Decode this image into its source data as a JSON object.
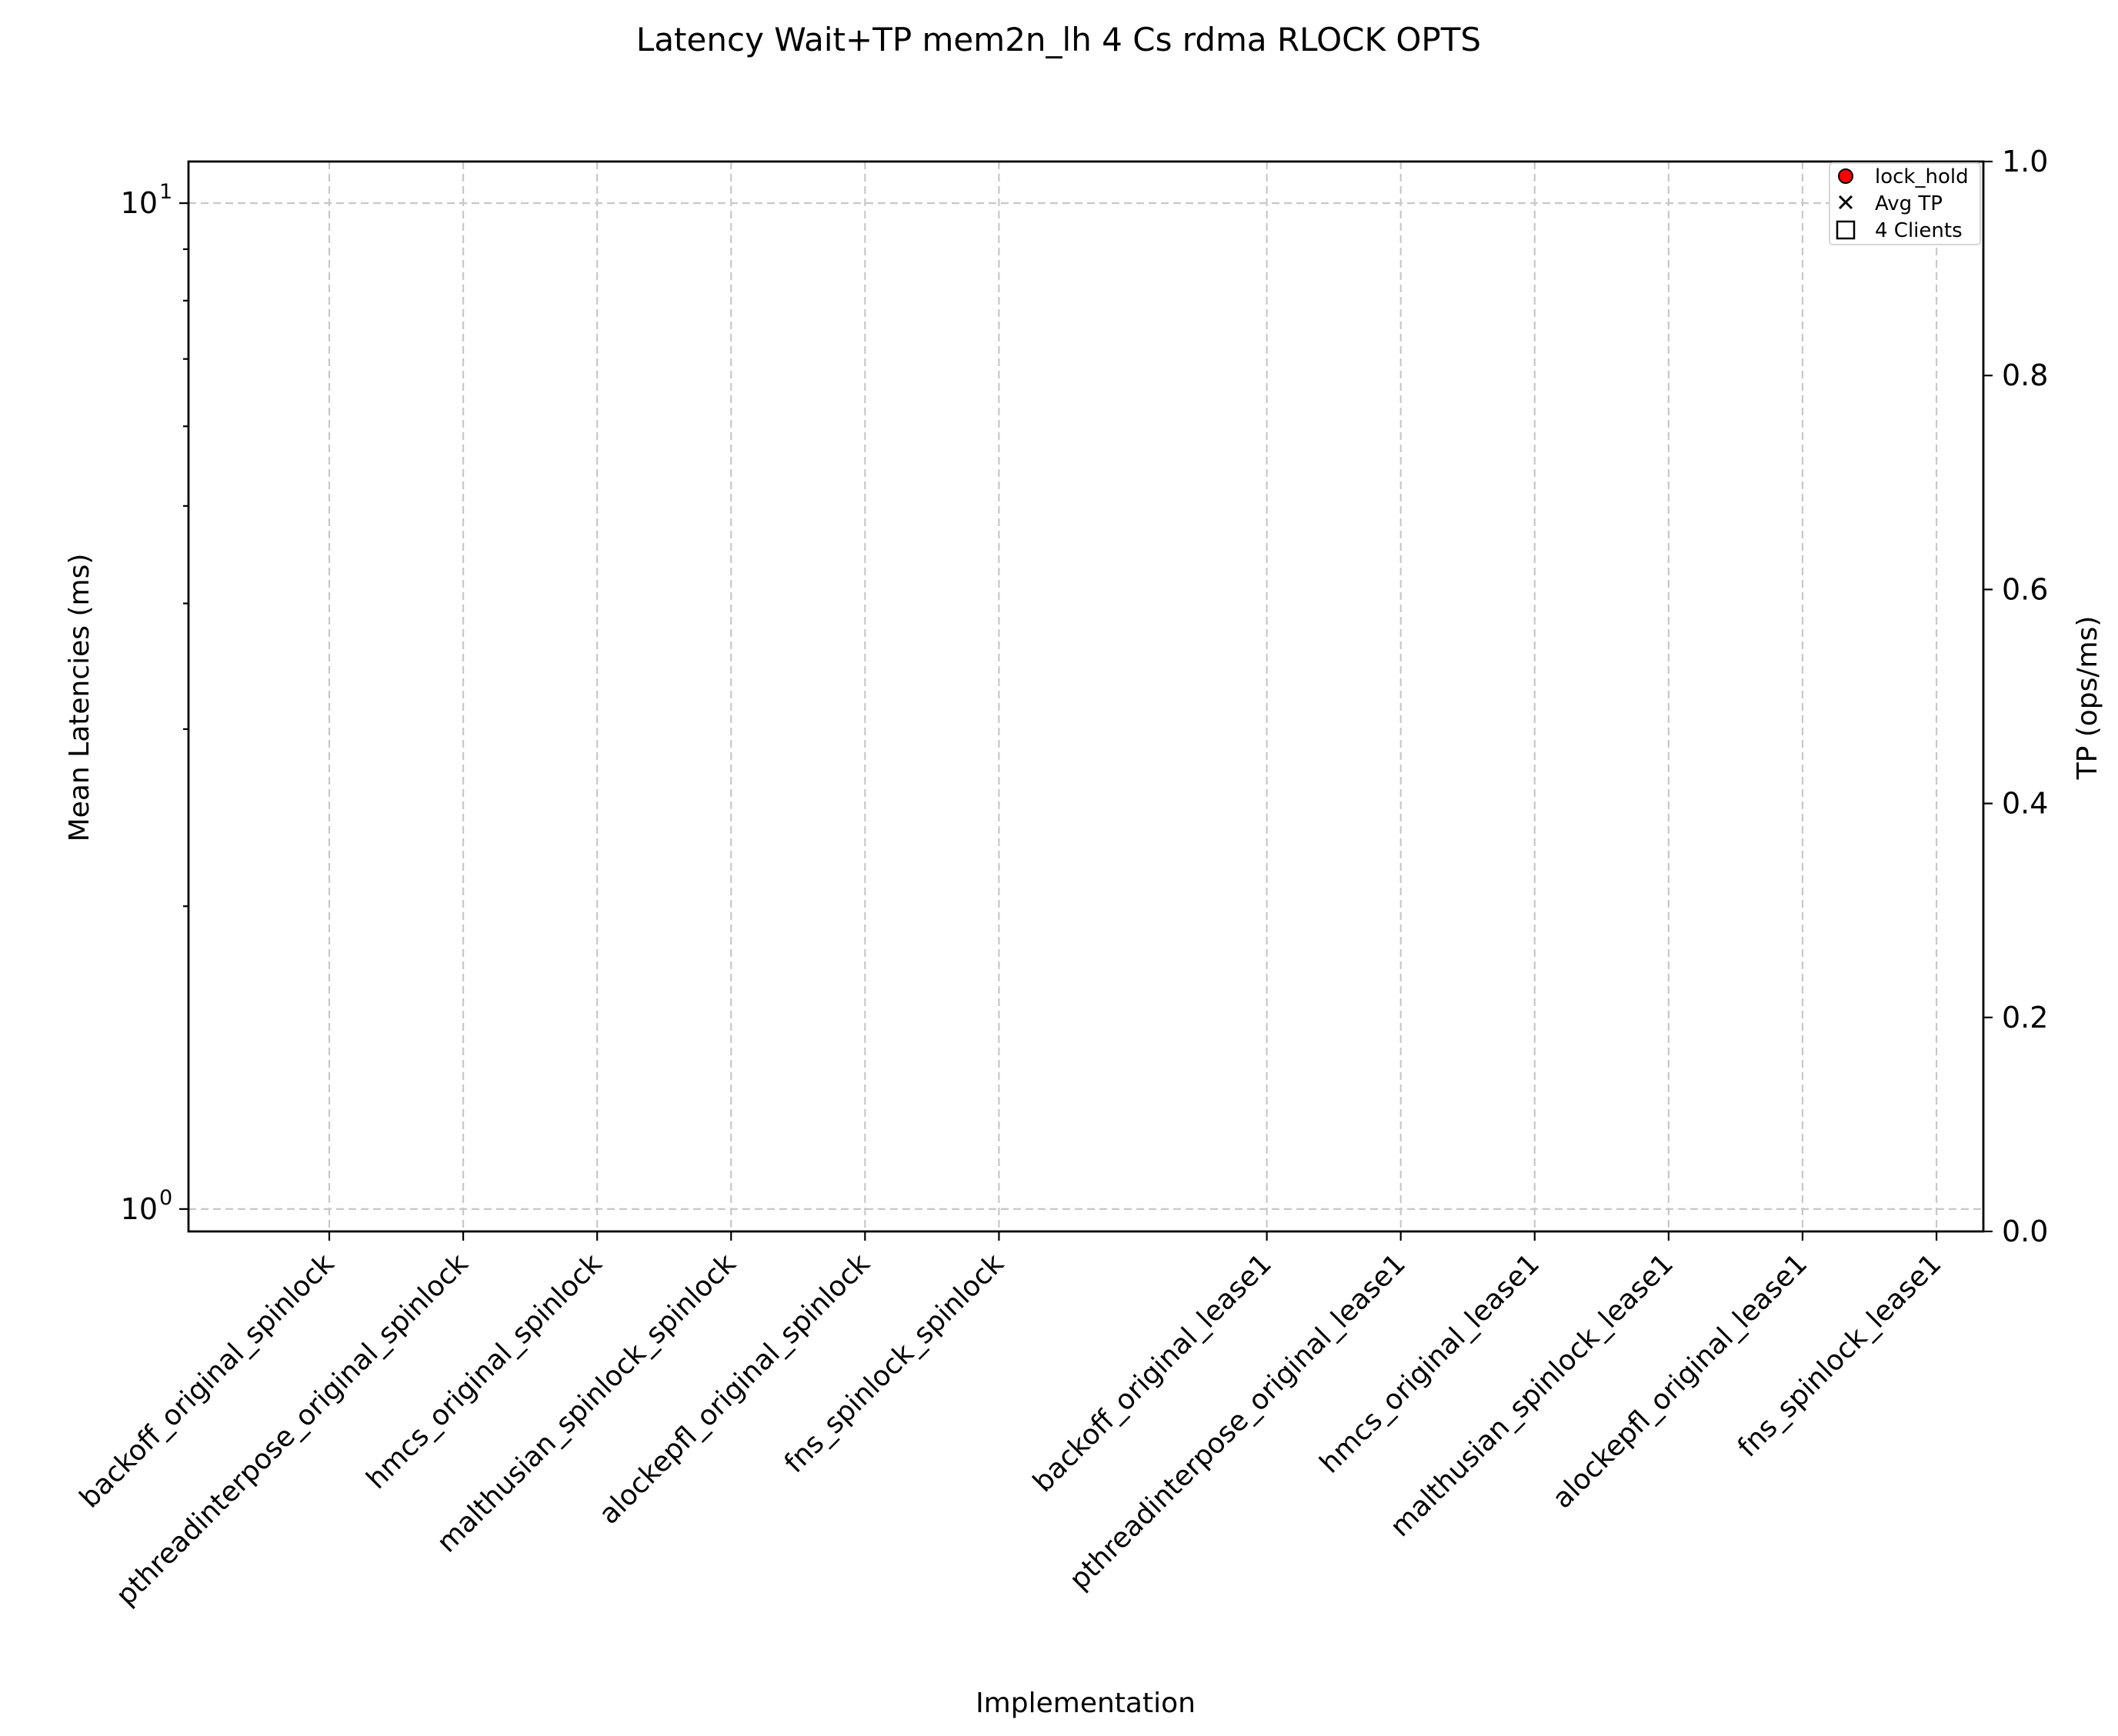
{
  "chart_data": {
    "type": "scatter",
    "title": "Latency Wait+TP mem2n_lh 4 Cs rdma RLOCK OPTS",
    "xlabel": "Implementation",
    "ylabel": "Mean Latencies (ms)",
    "y2label": "TP (ops/ms)",
    "categories": [
      "backoff_original_spinlock",
      "pthreadinterpose_original_spinlock",
      "hmcs_original_spinlock",
      "malthusian_spinlock_spinlock",
      "alockepfl_original_spinlock",
      "fns_spinlock_spinlock",
      "backoff_original_lease1",
      "pthreadinterpose_original_lease1",
      "hmcs_original_lease1",
      "malthusian_spinlock_lease1",
      "alockepfl_original_lease1",
      "fns_spinlock_lease1"
    ],
    "yscale": "log",
    "ylim": [
      0.95,
      11
    ],
    "yticks": [
      {
        "value": 1,
        "base": "10",
        "exp": "0"
      },
      {
        "value": 10,
        "base": "10",
        "exp": "1"
      }
    ],
    "y2lim": [
      0,
      1
    ],
    "y2ticks": [
      "0.0",
      "0.2",
      "0.4",
      "0.6",
      "0.8",
      "1.0"
    ],
    "grid": true,
    "series": [
      {
        "name": "lock_hold",
        "marker": "circle",
        "color": "#ff0000",
        "values": []
      },
      {
        "name": "Avg TP",
        "marker": "x",
        "color": "#000000",
        "values": []
      }
    ],
    "legend": {
      "position": "top-right",
      "entries": [
        {
          "label": "lock_hold",
          "marker": "circle",
          "color": "#ff0000"
        },
        {
          "label": "Avg TP",
          "marker": "x",
          "color": "#000000"
        },
        {
          "label": "4 Clients",
          "marker": "square",
          "color": "#ffffff"
        }
      ]
    }
  }
}
